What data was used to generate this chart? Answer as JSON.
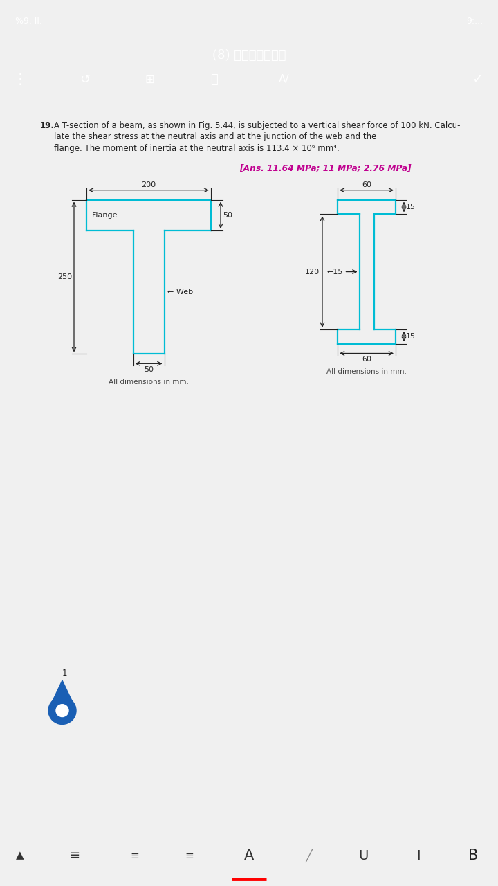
{
  "title_bar_color": "#2d5fa6",
  "status_text_right": "9:...",
  "status_text_left": "%9. ll.",
  "doc_title": "(8) المستند",
  "bg_color": "#f0f0f0",
  "page_bg": "#ffffff",
  "problem_number": "19.",
  "problem_line1": "A T-section of a beam, as shown in Fig. 5.44, is subjected to a vertical shear force of 100 kN. Calcu-",
  "problem_line2": "late the shear stress at the neutral axis and at the junction of the web and the",
  "problem_line3": "flange. The moment of inertia at the neutral axis is 113.4 × 10⁶ mm⁴.",
  "answer_text": "[Ans. 11.64 MPa; 11 MPa; 2.76 MPa]",
  "answer_color": "#c0008f",
  "shape_color": "#00bcd4",
  "shape_lw": 1.6,
  "dim_color": "#222222",
  "all_dims": "All dimensions in mm.",
  "pin_color": "#1a5fb4",
  "bottom_bar_bg": "#e8e8e8",
  "toolbar_icon_color": "#ffffff"
}
